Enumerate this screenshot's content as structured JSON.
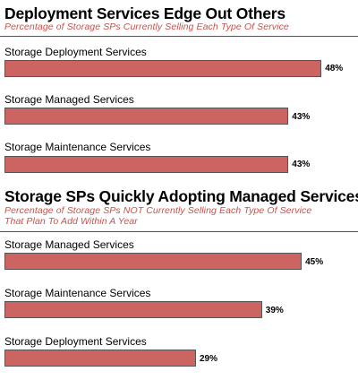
{
  "chart_data": [
    {
      "type": "bar",
      "orientation": "horizontal",
      "title": "Deployment Services Edge Out Others",
      "subtitle": "Percentage of Storage SPs Currently Selling Each Type Of Service",
      "categories": [
        "Storage Deployment Services",
        "Storage Managed Services",
        "Storage Maintenance Services"
      ],
      "values": [
        48,
        43,
        43
      ],
      "value_labels": [
        "48%",
        "43%",
        "43%"
      ],
      "xlim": [
        0,
        50
      ],
      "grid": false,
      "bar_color": "#cc6562",
      "title_color": "#000000",
      "subtitle_color": "#c8514b"
    },
    {
      "type": "bar",
      "orientation": "horizontal",
      "title": "Storage SPs Quickly Adopting Managed Services",
      "subtitle": "Percentage of Storage SPs NOT Currently Selling Each Type Of Service That Plan To Add Within A Year",
      "subtitle_lines": [
        "Percentage of Storage SPs NOT Currently Selling Each Type Of Service",
        "That Plan To Add Within A Year"
      ],
      "categories": [
        "Storage Managed Services",
        "Storage Maintenance Services",
        "Storage Deployment Services"
      ],
      "values": [
        45,
        39,
        29
      ],
      "value_labels": [
        "45%",
        "39%",
        "29%"
      ],
      "xlim": [
        0,
        50
      ],
      "grid": false,
      "bar_color": "#cc6562",
      "title_color": "#000000",
      "subtitle_color": "#c8514b"
    }
  ]
}
